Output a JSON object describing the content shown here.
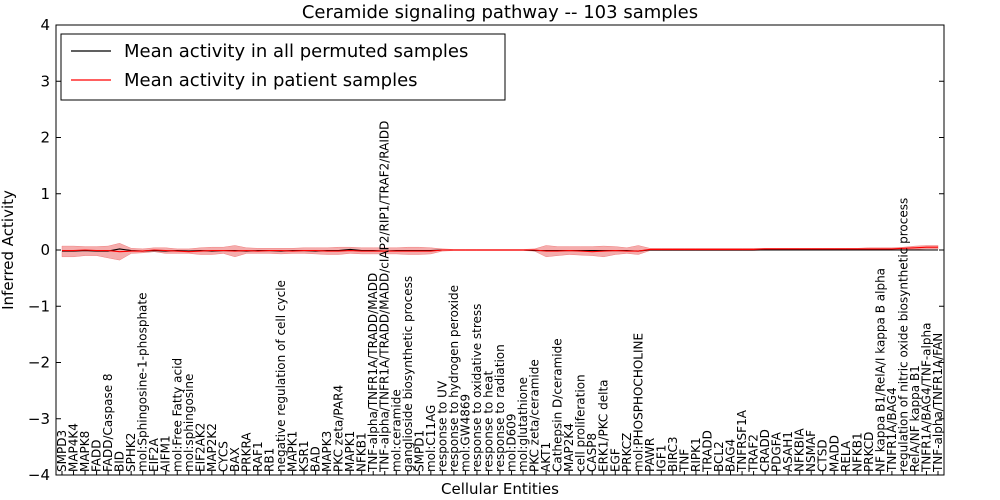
{
  "chart_data": {
    "type": "line",
    "title": "Ceramide signaling pathway -- 103 samples",
    "xlabel": "Cellular Entities",
    "ylabel": "Inferred Activity",
    "ylim": [
      -4,
      4
    ],
    "yticks": [
      -4,
      -3,
      -2,
      -1,
      0,
      1,
      2,
      3,
      4
    ],
    "yticklabels": [
      "−4",
      "−3",
      "−2",
      "−1",
      "0",
      "1",
      "2",
      "3",
      "4"
    ],
    "legend_position": "top-left",
    "categories": [
      "SMPD3",
      "MAP4K4",
      "MAPK8",
      "FADD",
      "FADD/Caspase 8",
      "BID",
      "SPHK2",
      "mol:Sphingosine-1-phosphate",
      "EIF2A",
      "AIFM1",
      "mol:Free Fatty acid",
      "mol:sphingosine",
      "EIF2AK2",
      "MAP2K2",
      "CYCS",
      "BAX",
      "PRKRA",
      "RAF1",
      "RB1",
      "negative regulation of cell cycle",
      "MAPK1",
      "KSR1",
      "BAD",
      "MAPK3",
      "PKC zeta/PAR4",
      "MAPK1",
      "NFKB1",
      "TNF-alpha/TNFR1A/TRADD/MADD",
      "TNF-alpha/TNFR1A/TRADD/MADD/cIAP2/RIP1/TRAF2/RAIDD",
      "mol:ceramide",
      "ganglioside biosynthetic process",
      "SMPD1",
      "mol:C11AG",
      "response to UV",
      "response to hydrogen peroxide",
      "mol:GW4869",
      "response to oxidative stress",
      "response to heat",
      "response to radiation",
      "mol:D609",
      "mol:glutathione",
      "PKC zeta/ceramide",
      "AKT1",
      "Cathepsin D/ceramide",
      "MAP2K4",
      "cell proliferation",
      "CASP8",
      "ERK1/PKC delta",
      "EGF",
      "PRKCZ",
      "mol:PHOSPHOCHOLINE",
      "PAWR",
      "IGF1",
      "BIRC3",
      "TNF",
      "RIPK1",
      "TRADD",
      "BCL2",
      "BAG4",
      "TNFRSF1A",
      "TRAF2",
      "CRADD",
      "PDGFA",
      "ASAH1",
      "NFKBIA",
      "NSMAF",
      "CTSD",
      "MADD",
      "RELA",
      "NFKB1",
      "PRKCD",
      "NF kappa B1/RelA/I kappa B alpha",
      "TNFR1A/BAG4",
      "regulation of nitric oxide biosynthetic process",
      "RelA/NF kappa B1",
      "TNFR1A/BAG4/TNF-alpha",
      "TNF-alpha/TNFR1A/FAN"
    ],
    "series": [
      {
        "name": "Mean activity in all permuted samples",
        "color": "#000000",
        "values": [
          -0.02,
          -0.02,
          -0.01,
          -0.02,
          -0.02,
          0.02,
          -0.01,
          -0.02,
          -0.01,
          -0.02,
          -0.01,
          -0.02,
          -0.01,
          -0.02,
          -0.01,
          -0.01,
          -0.02,
          -0.01,
          -0.01,
          -0.02,
          -0.01,
          -0.01,
          -0.02,
          -0.01,
          -0.01,
          0.01,
          -0.01,
          -0.01,
          -0.02,
          -0.01,
          -0.01,
          -0.01,
          -0.01,
          0.0,
          0.0,
          0.0,
          0.0,
          0.0,
          0.0,
          0.0,
          0.0,
          -0.01,
          -0.01,
          -0.01,
          -0.01,
          -0.01,
          -0.01,
          -0.01,
          -0.01,
          -0.01,
          -0.02,
          0.0,
          0.0,
          0.0,
          0.0,
          0.0,
          0.0,
          0.0,
          0.0,
          0.0,
          0.0,
          0.0,
          0.0,
          0.0,
          0.0,
          0.0,
          0.0,
          0.0,
          0.0,
          0.0,
          0.0,
          0.0,
          0.0,
          0.0,
          0.0,
          0.0,
          0.0
        ]
      },
      {
        "name": "Mean activity in patient samples",
        "color": "#ff0000",
        "band_color": "#f08080",
        "values": [
          -0.01,
          -0.01,
          0.0,
          -0.01,
          -0.01,
          -0.03,
          -0.02,
          -0.02,
          0.0,
          -0.01,
          -0.02,
          -0.03,
          -0.02,
          -0.01,
          -0.01,
          -0.02,
          -0.01,
          -0.02,
          -0.01,
          -0.01,
          -0.02,
          -0.01,
          -0.01,
          -0.02,
          -0.02,
          -0.01,
          -0.02,
          -0.02,
          -0.02,
          -0.02,
          -0.02,
          -0.02,
          -0.02,
          0.0,
          0.0,
          0.0,
          0.0,
          0.0,
          0.0,
          0.0,
          0.0,
          0.0,
          -0.02,
          -0.02,
          -0.01,
          -0.02,
          -0.03,
          -0.02,
          -0.01,
          -0.02,
          -0.02,
          0.01,
          0.01,
          0.01,
          0.01,
          0.01,
          0.01,
          0.01,
          0.01,
          0.01,
          0.01,
          0.02,
          0.02,
          0.02,
          0.02,
          0.02,
          0.02,
          0.02,
          0.02,
          0.02,
          0.02,
          0.02,
          0.02,
          0.03,
          0.04,
          0.05,
          0.05
        ],
        "upper": [
          0.07,
          0.07,
          0.06,
          0.06,
          0.07,
          0.12,
          0.03,
          0.02,
          0.04,
          0.04,
          0.02,
          0.02,
          0.04,
          0.05,
          0.05,
          0.08,
          0.04,
          0.03,
          0.03,
          0.03,
          0.03,
          0.04,
          0.04,
          0.04,
          0.05,
          0.05,
          0.04,
          0.04,
          0.04,
          0.04,
          0.05,
          0.05,
          0.04,
          0.02,
          0.01,
          0.01,
          0.01,
          0.01,
          0.01,
          0.01,
          0.01,
          0.02,
          0.08,
          0.06,
          0.06,
          0.06,
          0.06,
          0.07,
          0.06,
          0.04,
          0.08,
          0.03,
          0.03,
          0.03,
          0.03,
          0.03,
          0.03,
          0.03,
          0.03,
          0.03,
          0.03,
          0.03,
          0.03,
          0.03,
          0.03,
          0.03,
          0.03,
          0.03,
          0.03,
          0.03,
          0.04,
          0.04,
          0.04,
          0.05,
          0.07,
          0.08,
          0.08
        ],
        "lower": [
          -0.12,
          -0.12,
          -0.1,
          -0.1,
          -0.14,
          -0.18,
          -0.06,
          -0.05,
          -0.03,
          -0.06,
          -0.06,
          -0.06,
          -0.08,
          -0.08,
          -0.06,
          -0.12,
          -0.06,
          -0.06,
          -0.06,
          -0.07,
          -0.06,
          -0.06,
          -0.07,
          -0.08,
          -0.08,
          -0.06,
          -0.07,
          -0.07,
          -0.07,
          -0.07,
          -0.08,
          -0.08,
          -0.07,
          -0.02,
          -0.01,
          -0.01,
          -0.01,
          -0.01,
          -0.01,
          -0.01,
          -0.01,
          -0.02,
          -0.12,
          -0.1,
          -0.08,
          -0.09,
          -0.1,
          -0.12,
          -0.08,
          -0.06,
          -0.08,
          -0.01,
          -0.01,
          -0.01,
          -0.01,
          -0.01,
          -0.01,
          -0.01,
          -0.01,
          -0.01,
          -0.01,
          0.0,
          0.0,
          0.0,
          0.0,
          0.0,
          0.0,
          0.0,
          0.0,
          0.0,
          0.0,
          0.0,
          0.0,
          0.01,
          0.01,
          0.02,
          0.02
        ]
      }
    ]
  }
}
